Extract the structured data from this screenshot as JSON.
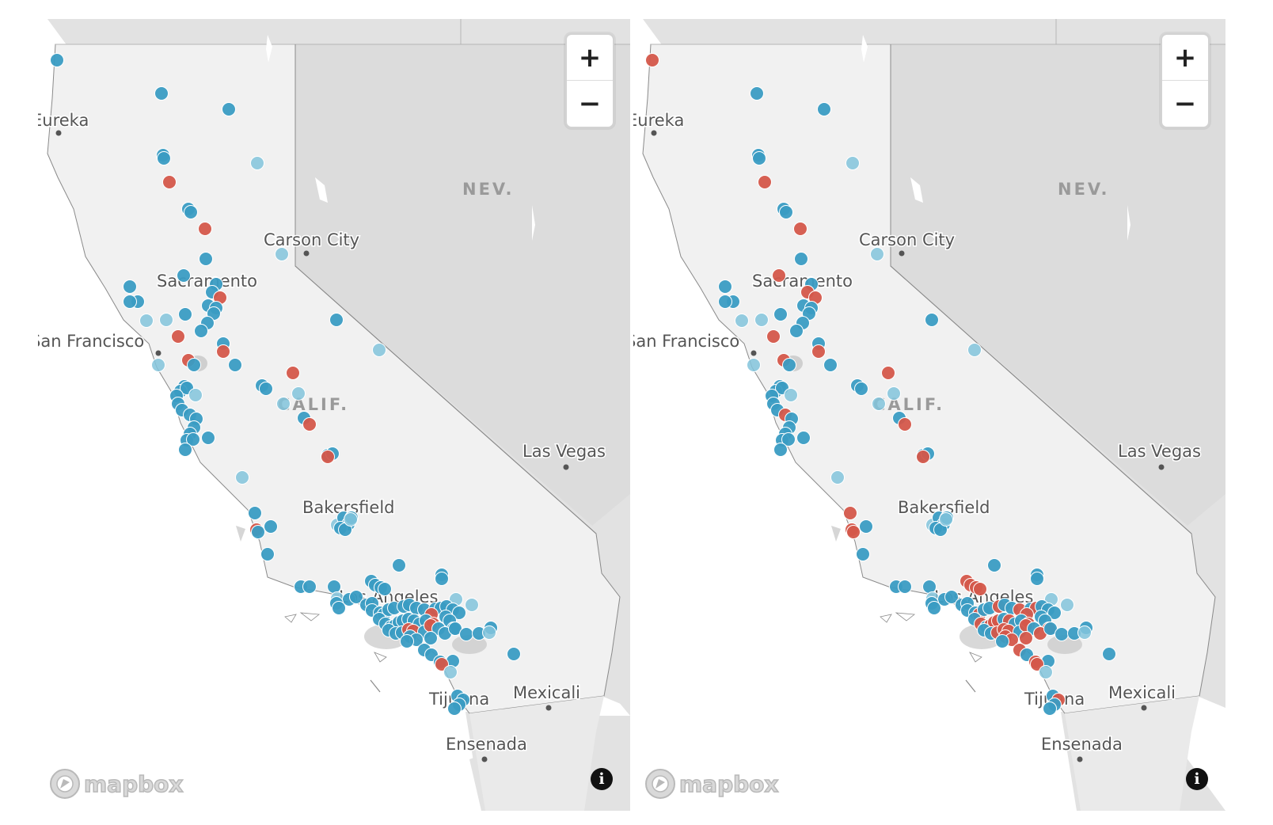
{
  "map_style": {
    "land_ca": "#f1f1f1",
    "land_other": "#e2e2e2",
    "water": "#ffffff",
    "border": "#8a8a8a",
    "marker_blue": "#3a9cc3",
    "marker_light_blue": "#82c4dc",
    "marker_red": "#d4574a"
  },
  "labels": {
    "eureka": "Eureka",
    "nev": "NEV.",
    "carson_city": "Carson City",
    "sacramento": "Sacramento",
    "san_francisco": "San Francisco",
    "calif": "CALIF.",
    "las_vegas": "Las Vegas",
    "bakersfield": "Bakersfield",
    "los_angeles": "Los Angeles",
    "tijuana": "Tijuana",
    "mexicali": "Mexicali",
    "ensenada": "Ensenada"
  },
  "controls": {
    "zoom_in": "+",
    "zoom_out": "−",
    "info": "i"
  },
  "attribution": {
    "logo": "mapbox",
    "logo_icon": "mapbox-compass-icon"
  },
  "maps": [
    {
      "id": "left-map"
    },
    {
      "id": "right-map"
    }
  ]
}
